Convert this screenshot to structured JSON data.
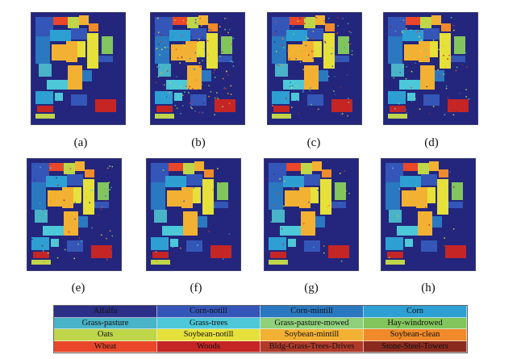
{
  "panels": [
    {
      "label": "(a)",
      "noise": 0
    },
    {
      "label": "(b)",
      "noise": 0.55
    },
    {
      "label": "(c)",
      "noise": 0.35
    },
    {
      "label": "(d)",
      "noise": 0.3
    },
    {
      "label": "(e)",
      "noise": 0.22
    },
    {
      "label": "(f)",
      "noise": 0.06
    },
    {
      "label": "(g)",
      "noise": 0.1
    },
    {
      "label": "(h)",
      "noise": 0.05
    }
  ],
  "legend": [
    {
      "name": "Alfalfa",
      "color": "#2c2f88"
    },
    {
      "name": "Corn-notill",
      "color": "#3456b8"
    },
    {
      "name": "Corn-mintill",
      "color": "#2a78c0"
    },
    {
      "name": "Corn",
      "color": "#2e9fd2"
    },
    {
      "name": "Grass-pasture",
      "color": "#49b3c8"
    },
    {
      "name": "Grass-trees",
      "color": "#4cc8d8"
    },
    {
      "name": "Grass-pasture-mowed",
      "color": "#8fd07a"
    },
    {
      "name": "Hay-windrowed",
      "color": "#82c55c"
    },
    {
      "name": "Oats",
      "color": "#bfd54a"
    },
    {
      "name": "Soybean-notill",
      "color": "#e6e03a"
    },
    {
      "name": "Soybean-mintill",
      "color": "#f3b133"
    },
    {
      "name": "Soybean-clean",
      "color": "#f08a2a"
    },
    {
      "name": "Wheat",
      "color": "#e9462a"
    },
    {
      "name": "Woods",
      "color": "#c52525"
    },
    {
      "name": "Bldg-Grass-Trees-Drives",
      "color": "#b03a2a"
    },
    {
      "name": "Stone-Steel-Towers",
      "color": "#8a2a1e"
    }
  ],
  "colors": {
    "background": "#23267c",
    "frame": "#5a5a5a"
  }
}
